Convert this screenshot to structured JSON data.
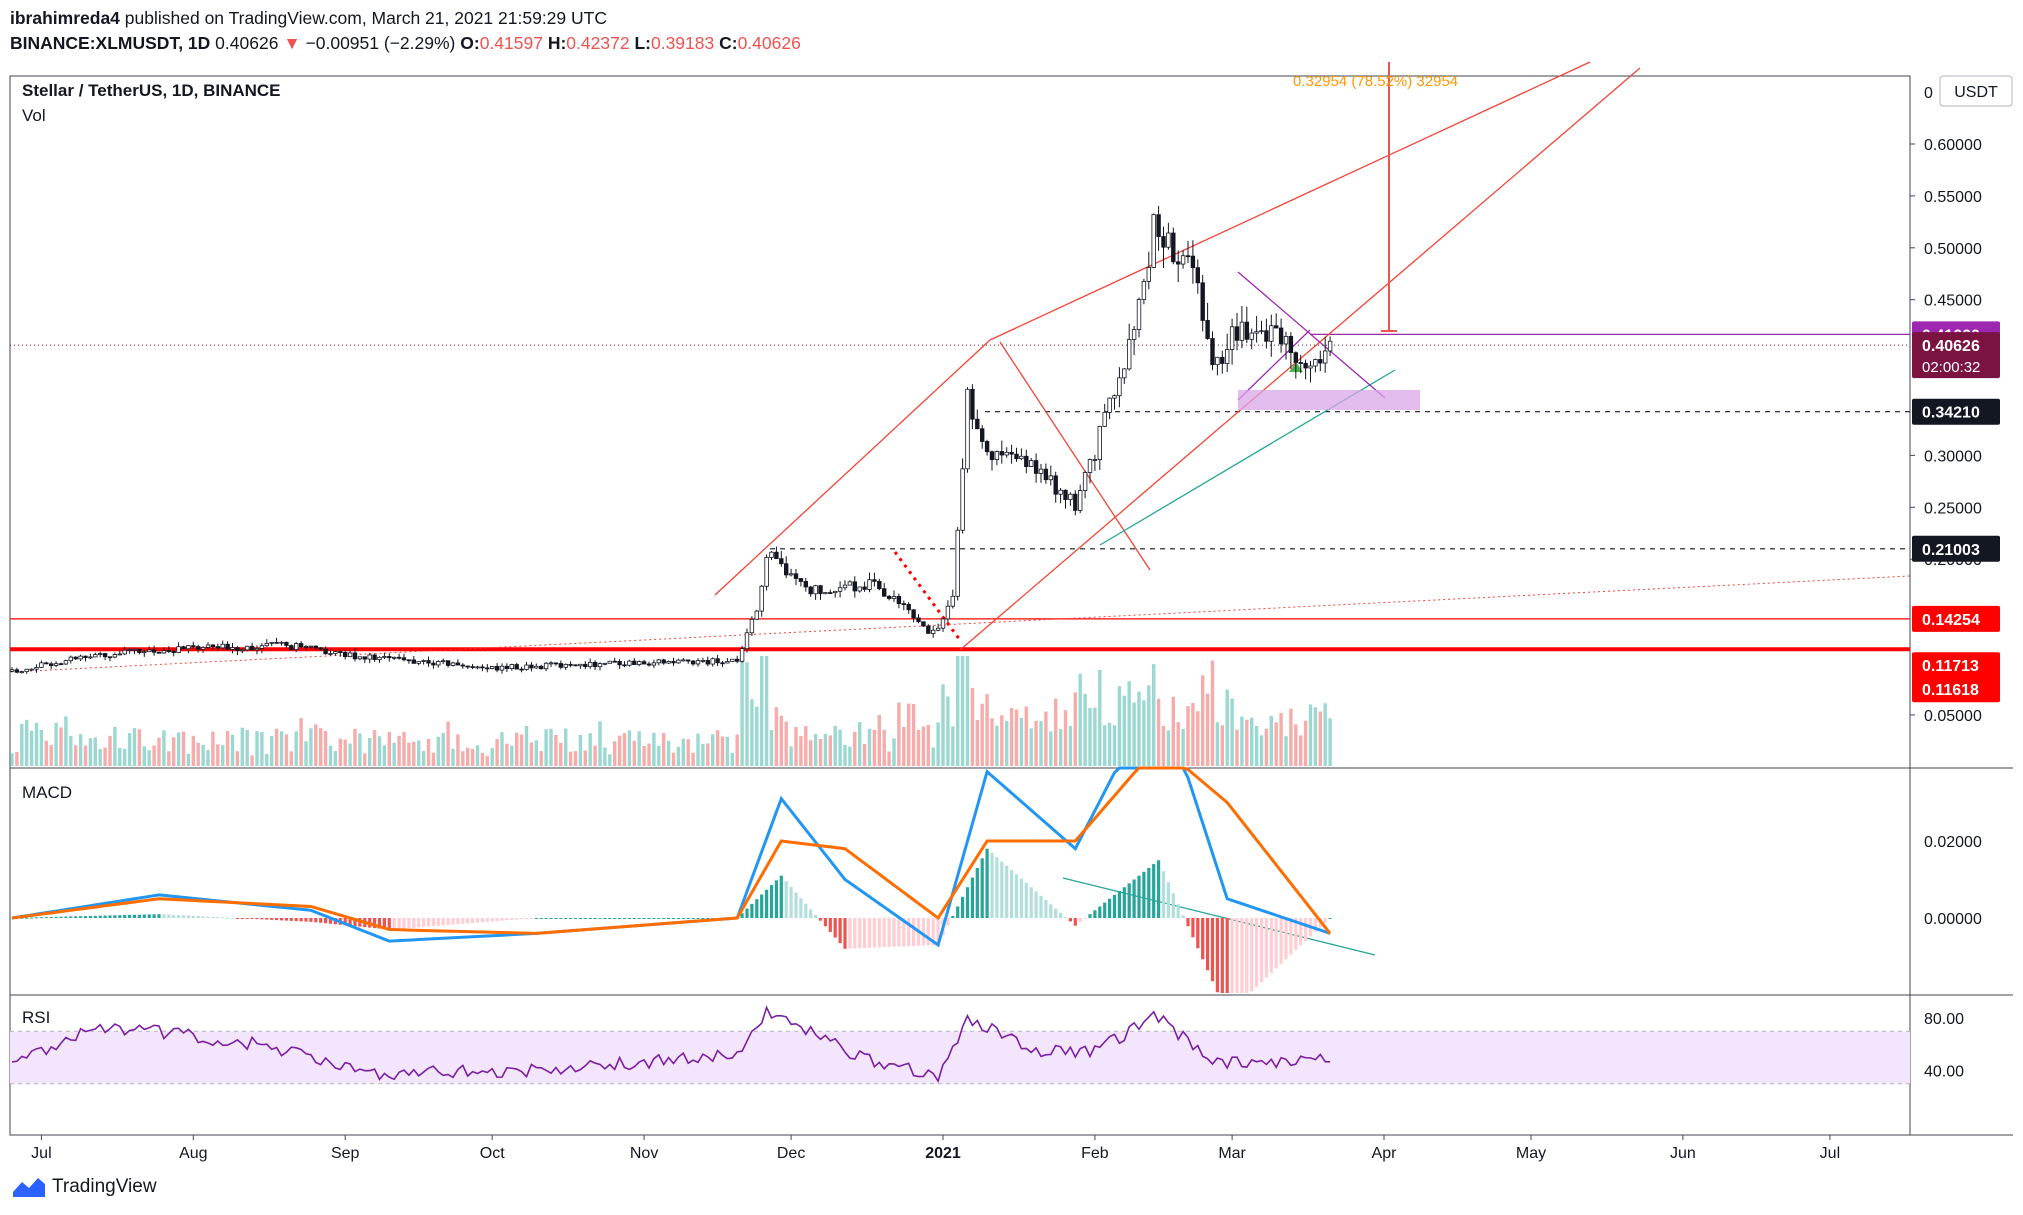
{
  "header": {
    "author": "ibrahimreda4",
    "published_text": "published on TradingView.com, March 21, 2021 21:59:29 UTC",
    "symbol": "BINANCE:XLMUSDT, 1D",
    "last": "0.40626",
    "arrow": "▼",
    "change": "−0.00951 (−2.29%)",
    "o_label": "O:",
    "o": "0.41597",
    "h_label": "H:",
    "h": "0.42372",
    "l_label": "L:",
    "l": "0.39183",
    "c_label": "C:",
    "c": "0.40626"
  },
  "legend": {
    "title": "Stellar / TetherUS, 1D, BINANCE",
    "vol": "Vol",
    "macd": "MACD",
    "rsi": "RSI"
  },
  "currency_button": "USDT",
  "footer": {
    "brand": "TradingView"
  },
  "colors": {
    "up": "#26a69a",
    "down": "#ef5350",
    "macd": "#2196f3",
    "signal": "#ff6d00",
    "rsi": "#7b1fa2",
    "rsi_band": "#f3e5fb",
    "purple": "#9c27b0",
    "label_purple": "#9c27b0",
    "label_maroon": "#7b1340",
    "red": "#ff0000"
  },
  "chart_data": {
    "type": "candlestick",
    "symbol": "XLMUSDT",
    "interval": "1D",
    "x_labels": [
      "Jul",
      "Aug",
      "Sep",
      "Oct",
      "Nov",
      "Dec",
      "2021",
      "Feb",
      "Mar",
      "Apr",
      "May",
      "Jun",
      "Jul"
    ],
    "price_axis_labels": [
      "0.60000",
      "0.55000",
      "0.50000",
      "0.45000",
      "0.30000",
      "0.25000",
      "0.20000",
      "0.05000"
    ],
    "price_axis_top_label": "0",
    "price_tags": [
      {
        "value": "0.41660",
        "kind": "purple"
      },
      {
        "value": "0.40626",
        "kind": "last",
        "sub": "02:00:32"
      },
      {
        "value": "0.34210",
        "kind": "black"
      },
      {
        "value": "0.21003",
        "kind": "black"
      },
      {
        "value": "0.14254",
        "kind": "red"
      },
      {
        "value": "0.11713",
        "kind": "red"
      },
      {
        "value": "0.11618",
        "kind": "red"
      }
    ],
    "measure_label": "0.32954 (78.52%) 32954",
    "horizontal_levels": [
      0.4166,
      0.40626,
      0.3421,
      0.21003,
      0.14254,
      0.11713,
      0.11618
    ],
    "candle_anchors": [
      {
        "date": "2020-06-25",
        "close": 0.092
      },
      {
        "date": "2020-07-10",
        "close": 0.107
      },
      {
        "date": "2020-08-01",
        "close": 0.114
      },
      {
        "date": "2020-08-20",
        "close": 0.117
      },
      {
        "date": "2020-09-01",
        "close": 0.108
      },
      {
        "date": "2020-10-01",
        "close": 0.095
      },
      {
        "date": "2020-10-25",
        "close": 0.1
      },
      {
        "date": "2020-11-20",
        "close": 0.102
      },
      {
        "date": "2020-11-24",
        "close": 0.15
      },
      {
        "date": "2020-11-26",
        "close": 0.205
      },
      {
        "date": "2020-12-05",
        "close": 0.17
      },
      {
        "date": "2020-12-18",
        "close": 0.176
      },
      {
        "date": "2020-12-30",
        "close": 0.128
      },
      {
        "date": "2021-01-03",
        "close": 0.16
      },
      {
        "date": "2021-01-06",
        "close": 0.36
      },
      {
        "date": "2021-01-10",
        "close": 0.3
      },
      {
        "date": "2021-01-20",
        "close": 0.29
      },
      {
        "date": "2021-01-28",
        "close": 0.25
      },
      {
        "date": "2021-02-05",
        "close": 0.36
      },
      {
        "date": "2021-02-10",
        "close": 0.44
      },
      {
        "date": "2021-02-13",
        "close": 0.52
      },
      {
        "date": "2021-02-16",
        "close": 0.5
      },
      {
        "date": "2021-02-22",
        "close": 0.47
      },
      {
        "date": "2021-02-25",
        "close": 0.38
      },
      {
        "date": "2021-03-01",
        "close": 0.42
      },
      {
        "date": "2021-03-10",
        "close": 0.42
      },
      {
        "date": "2021-03-15",
        "close": 0.39
      },
      {
        "date": "2021-03-21",
        "close": 0.40626
      }
    ],
    "macd_axis_labels": [
      "0.02000",
      "0.00000"
    ],
    "macd_anchors": [
      {
        "date": "2020-06-25",
        "macd": 0.0,
        "signal": 0.0
      },
      {
        "date": "2020-07-25",
        "macd": 0.006,
        "signal": 0.005
      },
      {
        "date": "2020-08-25",
        "macd": 0.002,
        "signal": 0.003
      },
      {
        "date": "2020-09-10",
        "macd": -0.006,
        "signal": -0.003
      },
      {
        "date": "2020-10-10",
        "macd": -0.004,
        "signal": -0.004
      },
      {
        "date": "2020-11-20",
        "macd": 0.0,
        "signal": 0.0
      },
      {
        "date": "2020-11-29",
        "macd": 0.031,
        "signal": 0.02
      },
      {
        "date": "2020-12-12",
        "macd": 0.01,
        "signal": 0.018
      },
      {
        "date": "2020-12-31",
        "macd": -0.007,
        "signal": 0.0
      },
      {
        "date": "2021-01-10",
        "macd": 0.038,
        "signal": 0.02
      },
      {
        "date": "2021-01-28",
        "macd": 0.018,
        "signal": 0.02
      },
      {
        "date": "2021-02-14",
        "macd": 0.06,
        "signal": 0.045
      },
      {
        "date": "2021-02-28",
        "macd": 0.005,
        "signal": 0.03
      },
      {
        "date": "2021-03-21",
        "macd": -0.004,
        "signal": -0.004
      }
    ],
    "rsi_axis_labels": [
      "80.00",
      "40.00"
    ],
    "rsi_band": [
      30,
      70
    ],
    "rsi_anchors": [
      {
        "date": "2020-06-25",
        "rsi": 45
      },
      {
        "date": "2020-07-12",
        "rsi": 75
      },
      {
        "date": "2020-08-15",
        "rsi": 60
      },
      {
        "date": "2020-09-05",
        "rsi": 38
      },
      {
        "date": "2020-10-10",
        "rsi": 40
      },
      {
        "date": "2020-11-20",
        "rsi": 52
      },
      {
        "date": "2020-11-26",
        "rsi": 86
      },
      {
        "date": "2020-12-15",
        "rsi": 50
      },
      {
        "date": "2020-12-31",
        "rsi": 35
      },
      {
        "date": "2021-01-06",
        "rsi": 80
      },
      {
        "date": "2021-01-20",
        "rsi": 55
      },
      {
        "date": "2021-02-01",
        "rsi": 55
      },
      {
        "date": "2021-02-14",
        "rsi": 82
      },
      {
        "date": "2021-02-25",
        "rsi": 45
      },
      {
        "date": "2021-03-21",
        "rsi": 48
      }
    ]
  }
}
